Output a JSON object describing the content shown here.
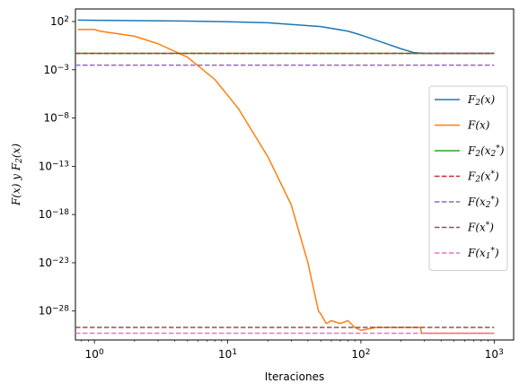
{
  "chart_data": {
    "type": "line",
    "xscale": "log",
    "yscale": "log",
    "xlim": [
      0.72,
      1400
    ],
    "ylim": [
      1e-31,
      2000
    ],
    "xlabel": "Iteraciones",
    "ylabel": "F(x) y F_2(x)",
    "x_ticks": [
      {
        "value": 1,
        "label": "10^0"
      },
      {
        "value": 10,
        "label": "10^1"
      },
      {
        "value": 100,
        "label": "10^2"
      },
      {
        "value": 1000,
        "label": "10^3"
      }
    ],
    "y_ticks": [
      {
        "value": 100,
        "label": "10^2"
      },
      {
        "value": 0.001,
        "label": "10^-3"
      },
      {
        "value": 1e-08,
        "label": "10^-8"
      },
      {
        "value": 1e-13,
        "label": "10^-13"
      },
      {
        "value": 1e-18,
        "label": "10^-18"
      },
      {
        "value": 1e-23,
        "label": "10^-23"
      },
      {
        "value": 1e-28,
        "label": "10^-28"
      }
    ],
    "grid": false,
    "legend_position": "center-right",
    "series": [
      {
        "name": "F_2(x)",
        "color": "#1f77b4",
        "style": "solid",
        "x": [
          0.75,
          1,
          2,
          5,
          10,
          20,
          50,
          80,
          100,
          150,
          200,
          250,
          300,
          500,
          1000
        ],
        "y": [
          140,
          135,
          125,
          110,
          95,
          75,
          30,
          10,
          4,
          0.6,
          0.15,
          0.06,
          0.05,
          0.05,
          0.05
        ]
      },
      {
        "name": "F(x)",
        "color": "#ff7f0e",
        "style": "solid",
        "x": [
          0.75,
          1,
          1.1,
          2,
          3,
          5,
          8,
          12,
          20,
          30,
          40,
          48,
          50,
          55,
          60,
          70,
          80,
          90,
          100,
          130,
          200,
          280,
          285,
          500,
          1000
        ],
        "y": [
          15,
          15,
          10,
          3,
          0.5,
          0.02,
          0.0001,
          1e-07,
          1e-12,
          1e-17,
          1e-23,
          1e-28,
          5e-29,
          5e-30,
          1e-29,
          5e-30,
          1e-29,
          2e-30,
          1e-30,
          2e-30,
          2e-30,
          2e-30,
          5e-31,
          5e-31,
          5e-31
        ]
      },
      {
        "name": "F_2(x_2^*)",
        "color": "#2ca02c",
        "style": "solid",
        "x": [
          0.72,
          1000
        ],
        "y": [
          0.05,
          0.05
        ]
      },
      {
        "name": "F_2(x^*)",
        "color": "#d62728",
        "style": "dashed",
        "x": [
          0.72,
          1000
        ],
        "y": [
          0.05,
          0.05
        ]
      },
      {
        "name": "F(x_2^*)",
        "color": "#9467bd",
        "style": "dashed",
        "x": [
          0.72,
          1000
        ],
        "y": [
          0.003,
          0.003
        ]
      },
      {
        "name": "F(x^*)",
        "color": "#8c564b",
        "style": "dashed",
        "x": [
          0.72,
          1000
        ],
        "y": [
          2e-30,
          2e-30
        ]
      },
      {
        "name": "F(x_1^*)",
        "color": "#e377c2",
        "style": "dashed",
        "x": [
          0.72,
          1000
        ],
        "y": [
          5e-31,
          5e-31
        ]
      }
    ]
  }
}
